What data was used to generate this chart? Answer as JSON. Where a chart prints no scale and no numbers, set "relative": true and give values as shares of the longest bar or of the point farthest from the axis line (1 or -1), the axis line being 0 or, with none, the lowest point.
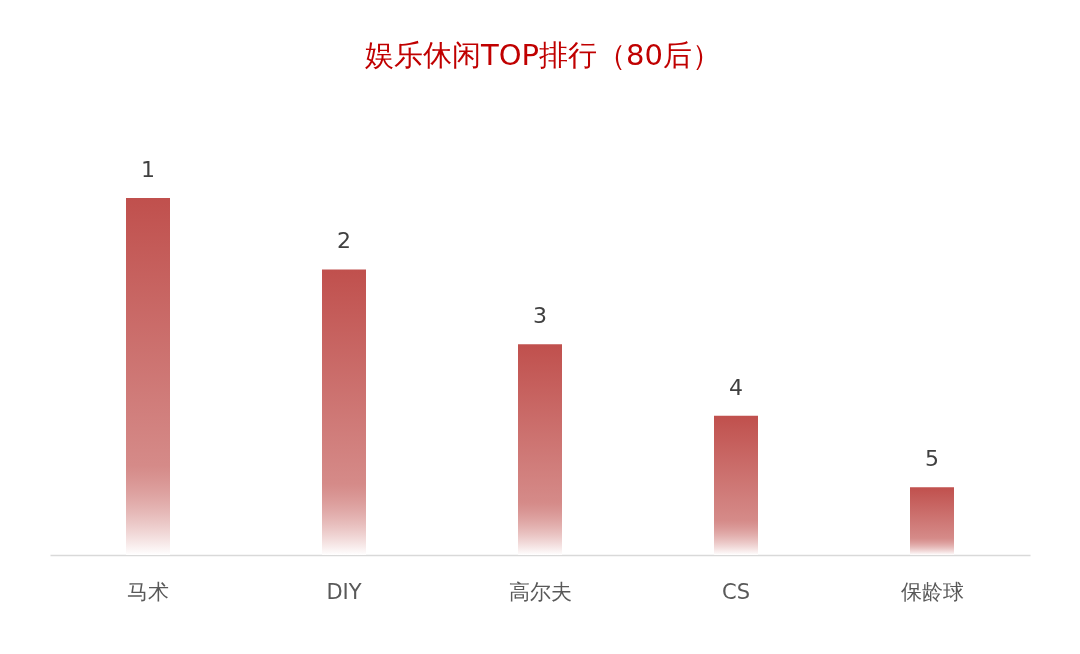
{
  "chart_data": {
    "type": "bar",
    "title": "娱乐休闲TOP排行（80后）",
    "categories": [
      "马术",
      "DIY",
      "高尔夫",
      "CS",
      "保龄球"
    ],
    "values": [
      1,
      0.8,
      0.59,
      0.39,
      0.19
    ],
    "relative": true,
    "color": "#c0504d",
    "annotations": [
      {
        "text": "1",
        "x": "马术",
        "y": 1
      },
      {
        "text": "2",
        "x": "DIY",
        "y": 0.8
      },
      {
        "text": "3",
        "x": "高尔夫",
        "y": 0.59
      },
      {
        "text": "4",
        "x": "CS",
        "y": 0.39
      },
      {
        "text": "5",
        "x": "保龄球",
        "y": 0.19
      }
    ]
  }
}
